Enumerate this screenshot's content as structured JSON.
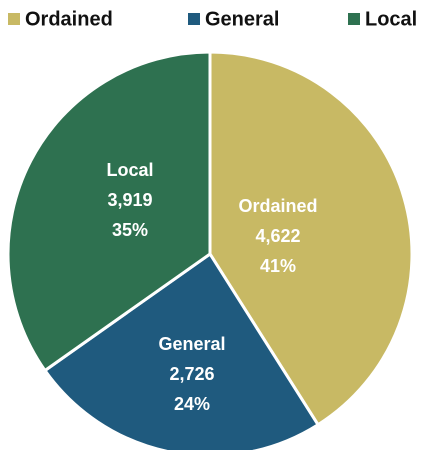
{
  "chart_data": {
    "type": "pie",
    "categories": [
      "Ordained",
      "General",
      "Local"
    ],
    "values": [
      4622,
      2726,
      3919
    ],
    "value_labels": [
      "4,622",
      "2,726",
      "3,919"
    ],
    "percents": [
      41,
      24,
      35
    ],
    "percent_labels": [
      "41%",
      "24%",
      "35%"
    ],
    "colors": [
      "#c8b964",
      "#1f5a7e",
      "#2e7150"
    ],
    "legend": "top"
  }
}
